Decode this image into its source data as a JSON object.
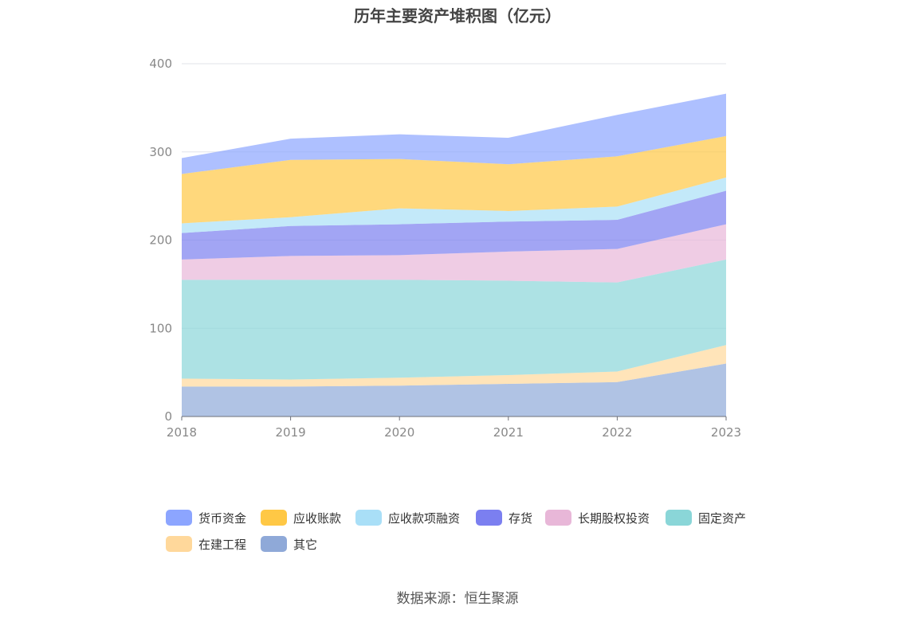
{
  "title": "历年主要资产堆积图（亿元）",
  "source": "数据来源：恒生聚源",
  "chart_data": {
    "type": "area",
    "stacked": true,
    "title": "历年主要资产堆积图（亿元）",
    "x": [
      "2018",
      "2019",
      "2020",
      "2021",
      "2022",
      "2023"
    ],
    "ylim": [
      0,
      400
    ],
    "yticks": [
      0,
      100,
      200,
      300,
      400
    ],
    "grid": true,
    "legend_position": "bottom",
    "series": [
      {
        "name": "其它",
        "color": "#8fa9d8",
        "values": [
          34,
          34,
          35,
          37,
          39,
          60
        ]
      },
      {
        "name": "在建工程",
        "color": "#ffd89b",
        "values": [
          9,
          8,
          9,
          10,
          12,
          21
        ]
      },
      {
        "name": "固定资产",
        "color": "#8ad6d8",
        "values": [
          112,
          113,
          111,
          107,
          101,
          97
        ]
      },
      {
        "name": "长期股权投资",
        "color": "#e8b7d8",
        "values": [
          23,
          27,
          28,
          33,
          38,
          40
        ]
      },
      {
        "name": "存货",
        "color": "#7b7ff0",
        "values": [
          30,
          34,
          35,
          34,
          33,
          38
        ]
      },
      {
        "name": "应收款项融资",
        "color": "#a9dff7",
        "values": [
          11,
          10,
          18,
          12,
          15,
          15
        ]
      },
      {
        "name": "应收账款",
        "color": "#ffc845",
        "values": [
          56,
          65,
          56,
          53,
          57,
          47
        ]
      },
      {
        "name": "货币资金",
        "color": "#8ca5ff",
        "values": [
          18,
          24,
          28,
          30,
          47,
          48
        ]
      }
    ],
    "legend_order": [
      "货币资金",
      "应收账款",
      "应收款项融资",
      "存货",
      "长期股权投资",
      "固定资产",
      "在建工程",
      "其它"
    ]
  }
}
